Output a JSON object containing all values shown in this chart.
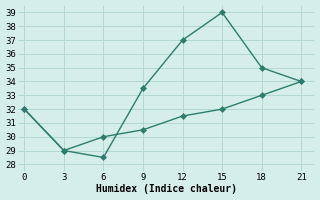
{
  "line1_x": [
    0,
    3,
    6,
    9,
    12,
    15,
    18,
    21
  ],
  "line1_y": [
    32,
    29,
    28.5,
    33.5,
    37,
    39,
    35,
    34
  ],
  "line2_x": [
    0,
    3,
    6,
    9,
    12,
    15,
    18,
    21
  ],
  "line2_y": [
    32,
    29,
    30,
    30.5,
    31.5,
    32,
    33,
    34
  ],
  "line_color": "#2d7d6e",
  "bg_color": "#d6eeea",
  "grid_color": "#b2d8d0",
  "xlabel": "Humidex (Indice chaleur)",
  "xlim": [
    -0.5,
    22
  ],
  "ylim": [
    27.5,
    39.5
  ],
  "xticks": [
    0,
    3,
    6,
    9,
    12,
    15,
    18,
    21
  ],
  "yticks": [
    28,
    29,
    30,
    31,
    32,
    33,
    34,
    35,
    36,
    37,
    38,
    39
  ],
  "marker": "D",
  "marker_size": 3,
  "linewidth": 1.0,
  "xlabel_fontsize": 7,
  "tick_fontsize": 6.5,
  "font_family": "monospace"
}
